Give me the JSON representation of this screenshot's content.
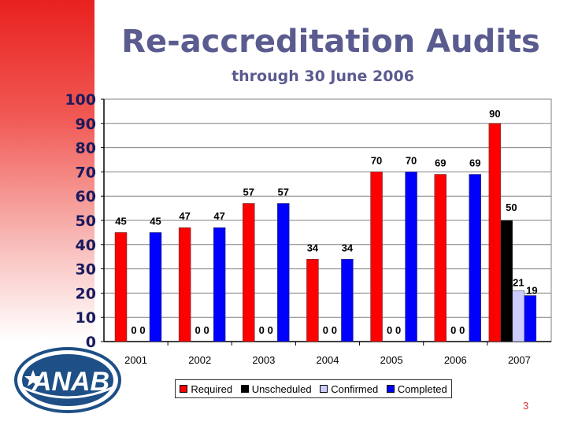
{
  "title": "Re-accreditation Audits",
  "subtitle": "through 30 June 2006",
  "page_number": "3",
  "logo_text": "ANAB",
  "colors": {
    "required": "#ff0000",
    "unscheduled": "#000000",
    "confirmed": "#ccccff",
    "completed": "#0000ff",
    "title": "#5a5b8f"
  },
  "chart_data": {
    "type": "bar",
    "title": "",
    "xlabel": "",
    "ylabel": "",
    "ylim": [
      0,
      100
    ],
    "yticks": [
      0,
      10,
      20,
      30,
      40,
      50,
      60,
      70,
      80,
      90,
      100
    ],
    "grid": true,
    "legend_position": "bottom",
    "categories": [
      "2001",
      "2002",
      "2003",
      "2004",
      "2005",
      "2006",
      "2007"
    ],
    "series": [
      {
        "name": "Required",
        "values": [
          45,
          47,
          57,
          34,
          70,
          69,
          90
        ]
      },
      {
        "name": "Unscheduled",
        "values": [
          0,
          0,
          0,
          0,
          0,
          0,
          50
        ]
      },
      {
        "name": "Confirmed",
        "values": [
          0,
          0,
          0,
          0,
          0,
          0,
          21
        ]
      },
      {
        "name": "Completed",
        "values": [
          45,
          47,
          57,
          34,
          70,
          69,
          19
        ]
      }
    ]
  }
}
